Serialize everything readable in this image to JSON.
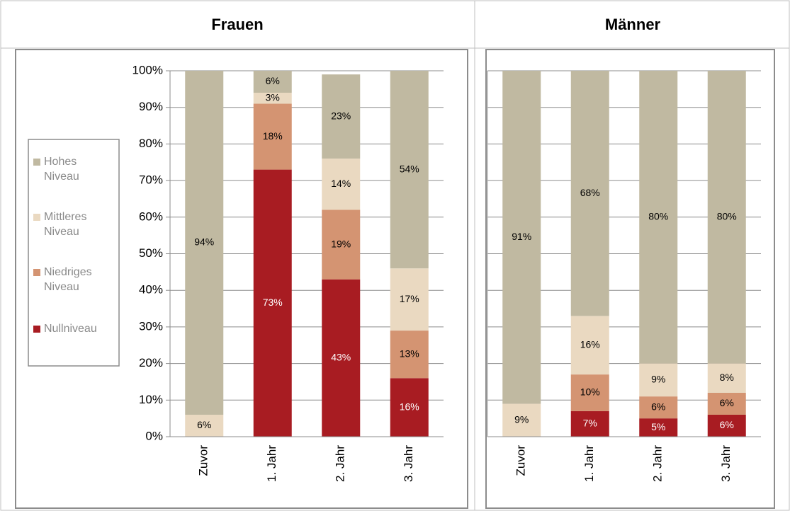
{
  "chart_data": [
    {
      "type": "bar",
      "stacked": true,
      "title": "Frauen",
      "categories": [
        "Zuvor",
        "1. Jahr",
        "2. Jahr",
        "3. Jahr"
      ],
      "series": [
        {
          "name": "Hohes Niveau",
          "color": "#c0b9a1",
          "values": [
            94,
            6,
            23,
            54
          ],
          "value_labels": [
            "94%",
            "6%",
            "23%",
            "54%"
          ]
        },
        {
          "name": "Mittleres Niveau",
          "color": "#ead9c1",
          "values": [
            6,
            3,
            14,
            17
          ],
          "value_labels": [
            "6%",
            "3%",
            "14%",
            "17%"
          ]
        },
        {
          "name": "Niedriges Niveau",
          "color": "#d49472",
          "values": [
            0,
            18,
            19,
            13
          ],
          "value_labels": [
            null,
            "18%",
            "19%",
            "13%"
          ]
        },
        {
          "name": "Nullniveau",
          "color": "#a81c22",
          "values": [
            0,
            73,
            43,
            16
          ],
          "value_labels": [
            null,
            "73%",
            "43%",
            "16%"
          ]
        }
      ],
      "ylim": [
        0,
        100
      ],
      "yticks": [
        {
          "value": 0,
          "label": "0%"
        },
        {
          "value": 10,
          "label": "10%"
        },
        {
          "value": 20,
          "label": "20%"
        },
        {
          "value": 30,
          "label": "30%"
        },
        {
          "value": 40,
          "label": "40%"
        },
        {
          "value": 50,
          "label": "50%"
        },
        {
          "value": 60,
          "label": "60%"
        },
        {
          "value": 70,
          "label": "70%"
        },
        {
          "value": 80,
          "label": "80%"
        },
        {
          "value": 90,
          "label": "90%"
        },
        {
          "value": 100,
          "label": "100%"
        }
      ],
      "grid": true,
      "legend": "left"
    },
    {
      "type": "bar",
      "stacked": true,
      "title": "Männer",
      "categories": [
        "Zuvor",
        "1. Jahr",
        "2. Jahr",
        "3. Jahr"
      ],
      "series": [
        {
          "color": "#c0b9a1",
          "values": [
            91,
            68,
            80,
            80
          ],
          "value_labels": [
            "91%",
            "68%",
            "80%",
            "80%"
          ]
        },
        {
          "color": "#ead9c1",
          "values": [
            9,
            16,
            9,
            8
          ],
          "value_labels": [
            "9%",
            "16%",
            "9%",
            "8%"
          ]
        },
        {
          "color": "#d49472",
          "values": [
            0,
            10,
            6,
            6
          ],
          "value_labels": [
            null,
            "10%",
            "6%",
            "6%"
          ]
        },
        {
          "color": "#a81c22",
          "values": [
            0,
            7,
            5,
            6
          ],
          "value_labels": [
            null,
            "7%",
            "5%",
            "6%"
          ]
        }
      ],
      "ylim": [
        0,
        100
      ],
      "yticks": [
        0,
        10,
        20,
        30,
        40,
        50,
        60,
        70,
        80,
        90,
        100
      ],
      "ytick_labels": false,
      "grid": true
    }
  ]
}
